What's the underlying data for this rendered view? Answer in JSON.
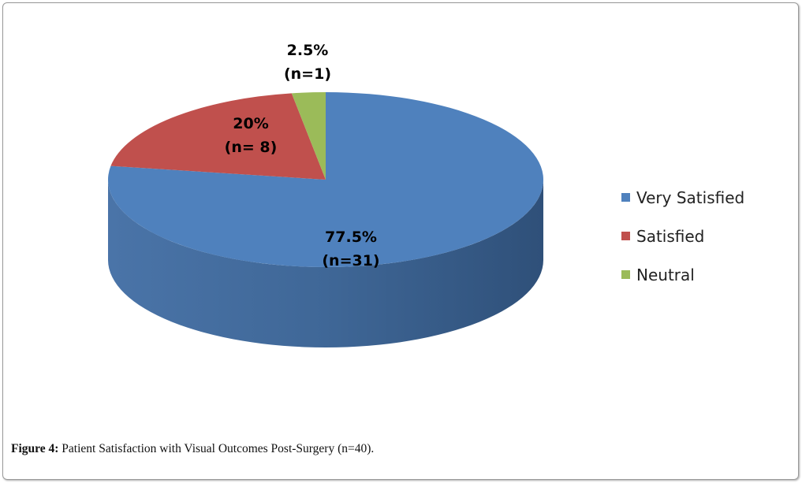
{
  "chart_data": {
    "type": "pie",
    "style": "3d",
    "categories": [
      "Very Satisfied",
      "Satisfied",
      "Neutral"
    ],
    "values": [
      77.5,
      20,
      2.5
    ],
    "counts": [
      31,
      8,
      1
    ],
    "labels": [
      {
        "pct": "77.5%",
        "n": "(n=31)"
      },
      {
        "pct": "20%",
        "n": "(n= 8)"
      },
      {
        "pct": "2.5%",
        "n": "(n=1)"
      }
    ],
    "colors": [
      "#4F81BD",
      "#C0504D",
      "#9BBB59"
    ],
    "legend_position": "right"
  },
  "caption": {
    "label": "Figure 4:",
    "text": " Patient Satisfaction with Visual Outcomes Post-Surgery (n=40)."
  }
}
